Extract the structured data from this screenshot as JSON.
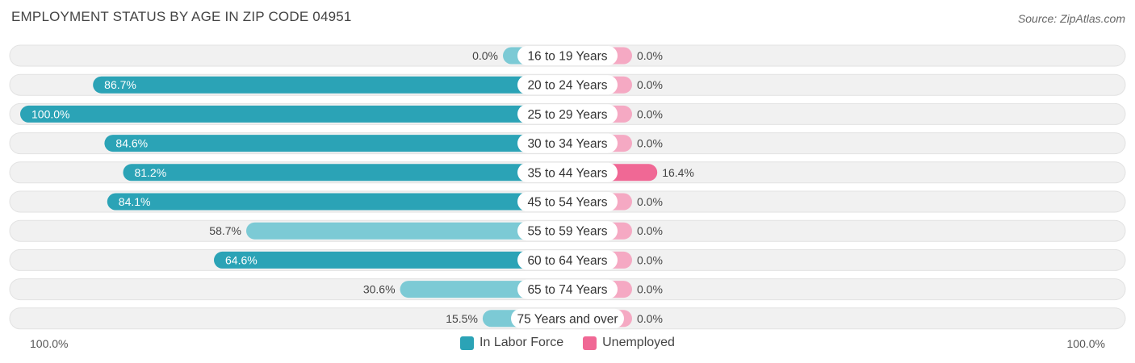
{
  "title": "EMPLOYMENT STATUS BY AGE IN ZIP CODE 04951",
  "source": "Source: ZipAtlas.com",
  "axis": {
    "left_label": "100.0%",
    "right_label": "100.0%"
  },
  "legend": [
    {
      "label": "In Labor Force",
      "color": "#2ba3b6"
    },
    {
      "label": "Unemployed",
      "color": "#f06895"
    }
  ],
  "colors": {
    "labor_strong": "#2ba3b6",
    "labor_light": "#7ccad5",
    "unemp_strong": "#f06895",
    "unemp_light": "#f5a9c3",
    "row_bg": "#f1f1f1"
  },
  "chart_data": {
    "type": "bar",
    "orientation": "horizontal-diverging",
    "title": "EMPLOYMENT STATUS BY AGE IN ZIP CODE 04951",
    "xlim": [
      -100,
      100
    ],
    "categories": [
      "16 to 19 Years",
      "20 to 24 Years",
      "25 to 29 Years",
      "30 to 34 Years",
      "35 to 44 Years",
      "45 to 54 Years",
      "55 to 59 Years",
      "60 to 64 Years",
      "65 to 74 Years",
      "75 Years and over"
    ],
    "series": [
      {
        "name": "In Labor Force",
        "values": [
          0.0,
          86.7,
          100.0,
          84.6,
          81.2,
          84.1,
          58.7,
          64.6,
          30.6,
          15.5
        ]
      },
      {
        "name": "Unemployed",
        "values": [
          0.0,
          0.0,
          0.0,
          0.0,
          16.4,
          0.0,
          0.0,
          0.0,
          0.0,
          0.0
        ]
      }
    ],
    "value_labels": {
      "labor": [
        "0.0%",
        "86.7%",
        "100.0%",
        "84.6%",
        "81.2%",
        "84.1%",
        "58.7%",
        "64.6%",
        "30.6%",
        "15.5%"
      ],
      "unemployed": [
        "0.0%",
        "0.0%",
        "0.0%",
        "0.0%",
        "16.4%",
        "0.0%",
        "0.0%",
        "0.0%",
        "0.0%",
        "0.0%"
      ]
    },
    "legend_position": "bottom-center"
  }
}
